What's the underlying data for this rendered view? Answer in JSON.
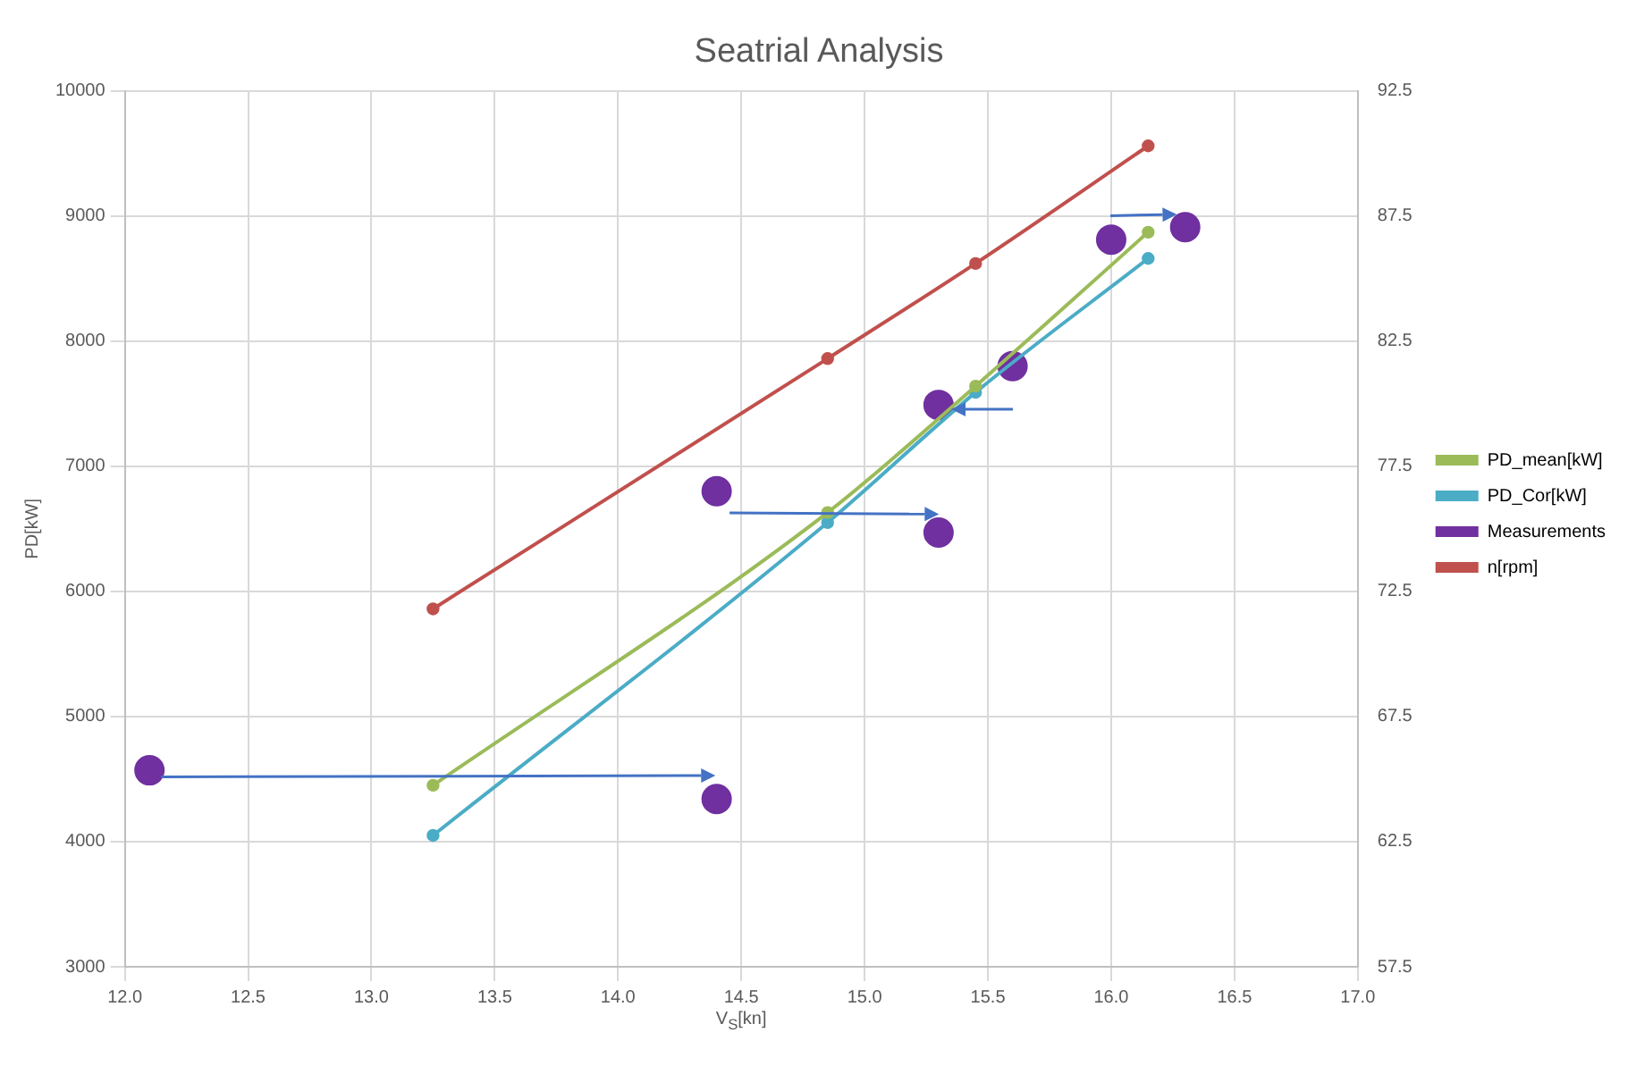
{
  "chart_data": {
    "type": "line",
    "title": "Seatrial Analysis",
    "xlabel": "V$_{S}$[kn]",
    "ylabel": "PD[kW]",
    "xlim": [
      12,
      17
    ],
    "xticks": [
      {
        "value": 12,
        "label": "12.0"
      },
      12.5,
      {
        "value": 13,
        "label": "13.0"
      },
      13.5,
      {
        "value": 14,
        "label": "14.0"
      },
      14.5,
      {
        "value": 15,
        "label": "15.0"
      },
      15.5,
      {
        "value": 16,
        "label": "16.0"
      },
      16.5,
      {
        "value": 17,
        "label": "17.0"
      }
    ],
    "ylim": [
      3000,
      10000
    ],
    "yticks": [
      3000,
      4000,
      5000,
      6000,
      7000,
      8000,
      9000,
      10000
    ],
    "y2lim": [
      57.5,
      92.5
    ],
    "y2ticks": [
      57.5,
      62.5,
      67.5,
      72.5,
      77.5,
      82.5,
      87.5,
      92.5
    ],
    "grid": true,
    "legend": "right",
    "marker": "circle",
    "line_style": "solid",
    "series": [
      {
        "name": "PD_mean[kW]",
        "color": "#9bbb59",
        "x": [
          13.25,
          14.85,
          15.45,
          16.15
        ],
        "values": [
          4450,
          6630,
          7640,
          8870
        ]
      },
      {
        "name": "PD_Cor[kW]",
        "color": "#4bacc6",
        "x": [
          13.25,
          14.85,
          15.45,
          16.15
        ],
        "values": [
          4050,
          6550,
          7590,
          8660
        ]
      },
      {
        "name": "Measurements",
        "type": "scatter",
        "color": "#7030a0",
        "x": [
          12.1,
          14.4,
          14.4,
          15.3,
          15.3,
          15.6,
          16.0,
          16.3
        ],
        "values": [
          4570,
          4340,
          6800,
          6470,
          7490,
          7800,
          8810,
          8910
        ]
      },
      {
        "name": "n[rpm]",
        "axis": "y2",
        "color": "#c0504d",
        "x": [
          13.25,
          14.85,
          15.45,
          16.15
        ],
        "values": [
          71.8,
          81.8,
          85.6,
          90.3
        ]
      }
    ]
  }
}
